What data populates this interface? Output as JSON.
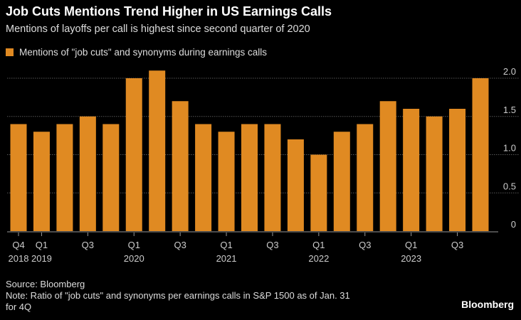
{
  "chart_data": {
    "type": "bar",
    "title": "Job Cuts Mentions Trend Higher in US Earnings Calls",
    "subtitle": "Mentions of layoffs per call is highest since second quarter of 2020",
    "legend": [
      "Mentions of \"job cuts\" and synonyms during earnings calls"
    ],
    "legend_position": "top-left",
    "categories": [
      "Q4 2018",
      "Q1 2019",
      "Q2 2019",
      "Q3 2019",
      "Q4 2019",
      "Q1 2020",
      "Q2 2020",
      "Q3 2020",
      "Q4 2020",
      "Q1 2021",
      "Q2 2021",
      "Q3 2021",
      "Q4 2021",
      "Q1 2022",
      "Q2 2022",
      "Q3 2022",
      "Q4 2022",
      "Q1 2023",
      "Q2 2023",
      "Q3 2023",
      "Q4 2023"
    ],
    "values": [
      1.4,
      1.3,
      1.4,
      1.5,
      1.4,
      2.0,
      2.1,
      1.7,
      1.4,
      1.3,
      1.4,
      1.4,
      1.2,
      1.0,
      1.3,
      1.4,
      1.7,
      1.6,
      1.5,
      1.6,
      2.0
    ],
    "x_tick_labels": [
      {
        "index": 0,
        "quarter": "Q4",
        "year": "2018"
      },
      {
        "index": 1,
        "quarter": "Q1",
        "year": "2019"
      },
      {
        "index": 3,
        "quarter": "Q3",
        "year": ""
      },
      {
        "index": 5,
        "quarter": "Q1",
        "year": "2020"
      },
      {
        "index": 7,
        "quarter": "Q3",
        "year": ""
      },
      {
        "index": 9,
        "quarter": "Q1",
        "year": "2021"
      },
      {
        "index": 11,
        "quarter": "Q3",
        "year": ""
      },
      {
        "index": 13,
        "quarter": "Q1",
        "year": "2022"
      },
      {
        "index": 15,
        "quarter": "Q3",
        "year": ""
      },
      {
        "index": 17,
        "quarter": "Q1",
        "year": "2023"
      },
      {
        "index": 19,
        "quarter": "Q3",
        "year": ""
      }
    ],
    "y_ticks": [
      "0",
      "0.5",
      "1.0",
      "1.5",
      "2.0"
    ],
    "y_tick_values": [
      0,
      0.5,
      1.0,
      1.5,
      2.0
    ],
    "ylim": [
      0,
      2.0
    ],
    "y_axis_side": "right",
    "grid": true,
    "bar_color": "#e08a22"
  },
  "footer": {
    "source": "Source: Bloomberg",
    "note": "Note: Ratio of \"job cuts\" and synonyms per earnings calls in S&P 1500 as of Jan. 31",
    "note2": "for 4Q",
    "brand": "Bloomberg"
  }
}
